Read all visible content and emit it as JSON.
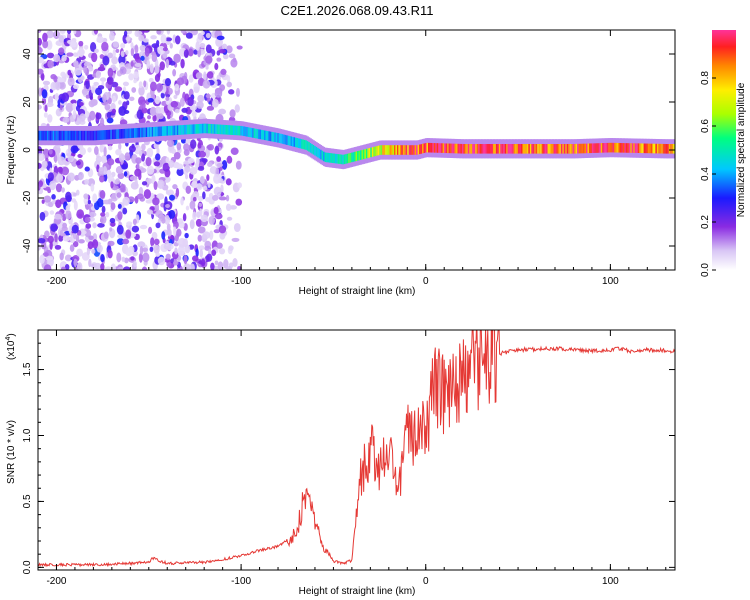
{
  "title": "C2E1.2026.068.09.43.R11",
  "chart_data": [
    {
      "type": "heatmap",
      "xlabel": "Height of straight line (km)",
      "ylabel": "Frequency (Hz)",
      "xlim": [
        -210,
        135
      ],
      "ylim": [
        -50,
        50
      ],
      "xticks": [
        -200,
        -100,
        0,
        100
      ],
      "yticks": [
        -40,
        -20,
        0,
        20,
        40
      ],
      "colorbar": {
        "label": "Normalized spectral amplitude",
        "range": [
          0,
          1
        ],
        "ticks": [
          0.0,
          0.2,
          0.4,
          0.6,
          0.8
        ]
      },
      "ridge": {
        "description_points_x_km": [
          -205,
          -180,
          -160,
          -140,
          -120,
          -100,
          -80,
          -65,
          -55,
          -45,
          -35,
          -25,
          -15,
          -5,
          0,
          20,
          50,
          80,
          100,
          130
        ],
        "frequency_hz": [
          6,
          6,
          7,
          8,
          9,
          8,
          5,
          2,
          -3,
          -4,
          -2,
          0,
          0,
          0,
          1,
          0.5,
          0.5,
          0.5,
          1,
          0.5
        ],
        "amplitude": [
          0.35,
          0.3,
          0.35,
          0.4,
          0.45,
          0.45,
          0.4,
          0.45,
          0.45,
          0.5,
          0.6,
          0.7,
          0.8,
          0.9,
          0.85,
          0.95,
          0.9,
          0.9,
          0.9,
          0.85
        ]
      }
    },
    {
      "type": "line",
      "xlabel": "Height of straight line (km)",
      "ylabel": "SNR (10 * v/v)",
      "scale_label": "(x10",
      "scale_exp": "4",
      "scale_close": ")",
      "xlim": [
        -210,
        135
      ],
      "ylim": [
        -0.02,
        1.8
      ],
      "xticks": [
        -200,
        -100,
        0,
        100
      ],
      "yticks": [
        0.0,
        0.5,
        1.0,
        1.5
      ],
      "color": "#e53935",
      "series": [
        {
          "name": "SNR",
          "x": [
            -210,
            -180,
            -160,
            -150,
            -148,
            -140,
            -120,
            -110,
            -100,
            -90,
            -80,
            -70,
            -65,
            -60,
            -55,
            -50,
            -45,
            -40,
            -35,
            -30,
            -25,
            -20,
            -15,
            -10,
            -5,
            0,
            5,
            10,
            15,
            20,
            30,
            40,
            50,
            70,
            90,
            100,
            105,
            110,
            120,
            135
          ],
          "y": [
            0.01,
            0.01,
            0.02,
            0.03,
            0.06,
            0.02,
            0.03,
            0.05,
            0.08,
            0.12,
            0.15,
            0.25,
            0.6,
            0.35,
            0.15,
            0.05,
            0.03,
            0.05,
            0.7,
            0.9,
            0.75,
            0.85,
            0.6,
            1.0,
            0.95,
            1.05,
            1.4,
            1.3,
            1.3,
            1.45,
            1.55,
            1.62,
            1.65,
            1.66,
            1.64,
            1.65,
            1.66,
            1.64,
            1.65,
            1.64
          ]
        }
      ]
    }
  ]
}
